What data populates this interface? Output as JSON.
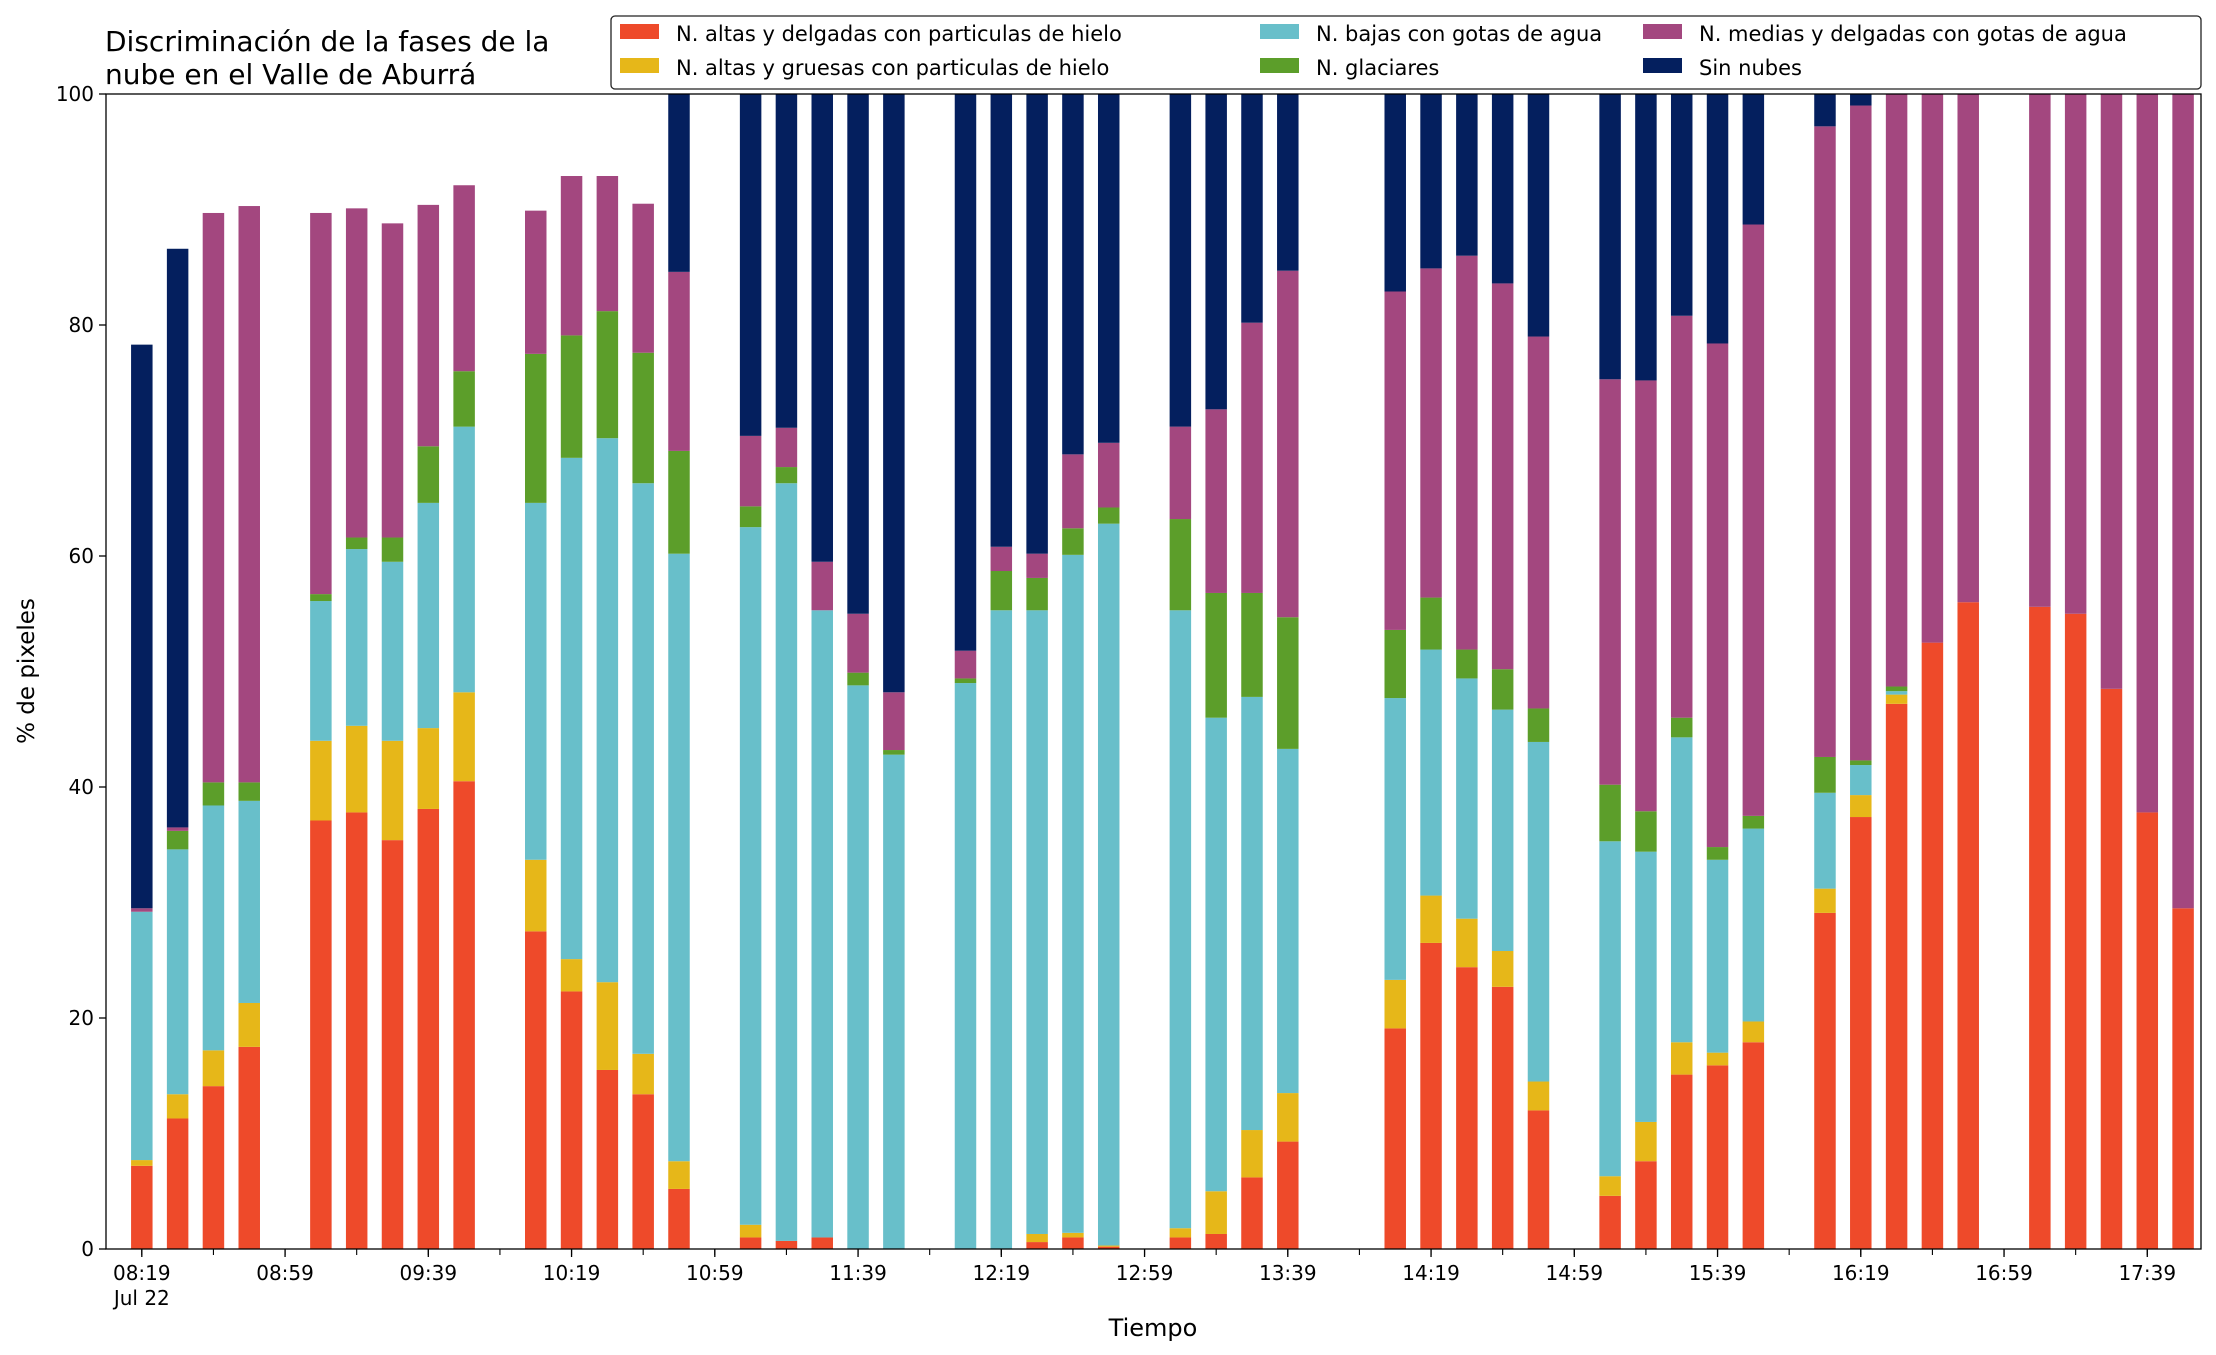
{
  "chart_data": {
    "type": "bar",
    "stacked": true,
    "title": "Discriminación de la fases de la nube en el Valle de Aburrá",
    "title_lines": [
      "Discriminación de la fases de la",
      "nube en el Valle de Aburrá"
    ],
    "xlabel": "Tiempo",
    "ylabel": "% de pixeles",
    "ylim": [
      0,
      100
    ],
    "yticks": [
      0,
      20,
      40,
      60,
      80,
      100
    ],
    "xlim_minutes_after_0819": [
      -10,
      575
    ],
    "tick_step_minutes": 20,
    "xtick_labels": [
      {
        "minute": 0,
        "label": "08:19",
        "sublabel": "Jul 22"
      },
      {
        "minute": 40,
        "label": "08:59"
      },
      {
        "minute": 80,
        "label": "09:39"
      },
      {
        "minute": 120,
        "label": "10:19"
      },
      {
        "minute": 160,
        "label": "10:59"
      },
      {
        "minute": 200,
        "label": "11:39"
      },
      {
        "minute": 240,
        "label": "12:19"
      },
      {
        "minute": 280,
        "label": "12:59"
      },
      {
        "minute": 320,
        "label": "13:39"
      },
      {
        "minute": 360,
        "label": "14:19"
      },
      {
        "minute": 400,
        "label": "14:59"
      },
      {
        "minute": 440,
        "label": "15:39"
      },
      {
        "minute": 480,
        "label": "16:19"
      },
      {
        "minute": 520,
        "label": "16:59"
      },
      {
        "minute": 560,
        "label": "17:39"
      }
    ],
    "grid": false,
    "legend_position": "top-right",
    "series": [
      {
        "name": "N. altas y delgadas con particulas de hielo",
        "color": "#ee4a2a"
      },
      {
        "name": "N. altas y gruesas con particulas de hielo",
        "color": "#e6b719"
      },
      {
        "name": "N. bajas con gotas de agua",
        "color": "#68bfca"
      },
      {
        "name": "N. glaciares",
        "color": "#5c9e2a"
      },
      {
        "name": "N. medias y delgadas con gotas de agua",
        "color": "#a3477f"
      },
      {
        "name": "Sin nubes",
        "color": "#041f5e"
      }
    ],
    "bars": [
      {
        "minute": 0,
        "values": [
          7.2,
          0.5,
          21.5,
          0,
          0.3,
          48.8
        ]
      },
      {
        "minute": 10,
        "values": [
          11.3,
          2.1,
          21.2,
          1.6,
          0.3,
          50.1
        ]
      },
      {
        "minute": 20,
        "values": [
          14.1,
          3.1,
          21.2,
          2.0,
          49.3,
          0
        ]
      },
      {
        "minute": 30,
        "values": [
          17.5,
          3.8,
          17.5,
          1.6,
          49.9,
          0
        ]
      },
      {
        "minute": 50,
        "values": [
          37.1,
          6.9,
          12.1,
          0.6,
          33.0,
          0
        ]
      },
      {
        "minute": 60,
        "values": [
          37.8,
          7.5,
          15.3,
          1.0,
          28.5,
          0
        ]
      },
      {
        "minute": 70,
        "values": [
          35.4,
          8.6,
          15.5,
          2.1,
          27.2,
          0
        ]
      },
      {
        "minute": 80,
        "values": [
          38.1,
          7.0,
          19.5,
          4.9,
          20.9,
          0
        ]
      },
      {
        "minute": 90,
        "values": [
          40.5,
          7.7,
          23.0,
          4.8,
          16.1,
          0
        ]
      },
      {
        "minute": 110,
        "values": [
          27.5,
          6.2,
          30.9,
          12.9,
          12.4,
          0
        ]
      },
      {
        "minute": 120,
        "values": [
          22.3,
          2.8,
          43.4,
          10.6,
          13.8,
          0
        ]
      },
      {
        "minute": 130,
        "values": [
          15.5,
          7.6,
          47.1,
          11.0,
          11.7,
          0
        ]
      },
      {
        "minute": 140,
        "values": [
          13.4,
          3.5,
          49.4,
          11.3,
          12.9,
          0
        ]
      },
      {
        "minute": 150,
        "values": [
          5.2,
          2.4,
          52.6,
          8.9,
          15.5,
          15.4
        ]
      },
      {
        "minute": 170,
        "values": [
          1.0,
          1.1,
          60.4,
          1.8,
          6.1,
          29.6
        ]
      },
      {
        "minute": 180,
        "values": [
          0.7,
          0,
          65.6,
          1.4,
          3.4,
          28.9
        ]
      },
      {
        "minute": 190,
        "values": [
          1.0,
          0,
          54.3,
          0,
          4.2,
          40.5
        ]
      },
      {
        "minute": 200,
        "values": [
          0,
          0,
          48.8,
          1.1,
          5.1,
          45.0
        ]
      },
      {
        "minute": 210,
        "values": [
          0,
          0,
          42.8,
          0.4,
          5.0,
          51.8
        ]
      },
      {
        "minute": 230,
        "values": [
          0,
          0,
          49.0,
          0.4,
          2.4,
          48.2
        ]
      },
      {
        "minute": 240,
        "values": [
          0,
          0,
          55.3,
          3.4,
          2.1,
          39.2
        ]
      },
      {
        "minute": 250,
        "values": [
          0.6,
          0.7,
          54.0,
          2.8,
          2.1,
          39.8
        ]
      },
      {
        "minute": 260,
        "values": [
          1.0,
          0.4,
          58.7,
          2.3,
          6.4,
          31.2
        ]
      },
      {
        "minute": 270,
        "values": [
          0.2,
          0.1,
          62.5,
          1.4,
          5.6,
          30.2
        ]
      },
      {
        "minute": 290,
        "values": [
          1.0,
          0.8,
          53.5,
          7.9,
          8.0,
          28.8
        ]
      },
      {
        "minute": 300,
        "values": [
          1.3,
          3.7,
          41.0,
          10.8,
          15.9,
          27.3
        ]
      },
      {
        "minute": 310,
        "values": [
          6.2,
          4.1,
          37.5,
          9.0,
          23.4,
          19.8
        ]
      },
      {
        "minute": 320,
        "values": [
          9.3,
          4.2,
          29.8,
          11.4,
          30.0,
          15.3
        ]
      },
      {
        "minute": 350,
        "values": [
          19.1,
          4.2,
          24.4,
          5.9,
          29.3,
          17.1
        ]
      },
      {
        "minute": 360,
        "values": [
          26.5,
          4.1,
          21.3,
          4.5,
          28.5,
          15.1
        ]
      },
      {
        "minute": 370,
        "values": [
          24.4,
          4.2,
          20.8,
          2.5,
          34.1,
          14.0
        ]
      },
      {
        "minute": 380,
        "values": [
          22.7,
          3.1,
          20.9,
          3.5,
          33.4,
          16.4
        ]
      },
      {
        "minute": 390,
        "values": [
          12.0,
          2.5,
          29.4,
          2.9,
          32.2,
          21.0
        ]
      },
      {
        "minute": 410,
        "values": [
          4.6,
          1.7,
          29.0,
          4.9,
          35.1,
          24.7
        ]
      },
      {
        "minute": 420,
        "values": [
          7.6,
          3.4,
          23.4,
          3.5,
          37.3,
          24.8
        ]
      },
      {
        "minute": 430,
        "values": [
          15.1,
          2.8,
          26.4,
          1.7,
          34.8,
          19.2
        ]
      },
      {
        "minute": 440,
        "values": [
          15.9,
          1.1,
          16.7,
          1.1,
          43.6,
          21.6
        ]
      },
      {
        "minute": 450,
        "values": [
          17.9,
          1.8,
          16.7,
          1.1,
          51.2,
          11.3
        ]
      },
      {
        "minute": 470,
        "values": [
          29.1,
          2.1,
          8.3,
          3.1,
          54.6,
          2.8
        ]
      },
      {
        "minute": 480,
        "values": [
          37.4,
          1.9,
          2.6,
          0.4,
          56.7,
          1.0
        ]
      },
      {
        "minute": 490,
        "values": [
          47.2,
          0.8,
          0.3,
          0.4,
          51.3,
          0
        ]
      },
      {
        "minute": 500,
        "values": [
          52.5,
          0,
          0,
          0,
          47.5,
          0
        ]
      },
      {
        "minute": 510,
        "values": [
          56.0,
          0,
          0,
          0,
          44.0,
          0
        ]
      },
      {
        "minute": 530,
        "values": [
          55.6,
          0,
          0,
          0,
          44.4,
          0
        ]
      },
      {
        "minute": 540,
        "values": [
          55.0,
          0,
          0,
          0,
          45.0,
          0
        ]
      },
      {
        "minute": 550,
        "values": [
          48.5,
          0,
          0,
          0,
          51.5,
          0
        ]
      },
      {
        "minute": 560,
        "values": [
          37.8,
          0,
          0,
          0,
          62.2,
          0
        ]
      },
      {
        "minute": 570,
        "values": [
          29.5,
          0,
          0,
          0,
          70.5,
          0
        ]
      }
    ]
  }
}
